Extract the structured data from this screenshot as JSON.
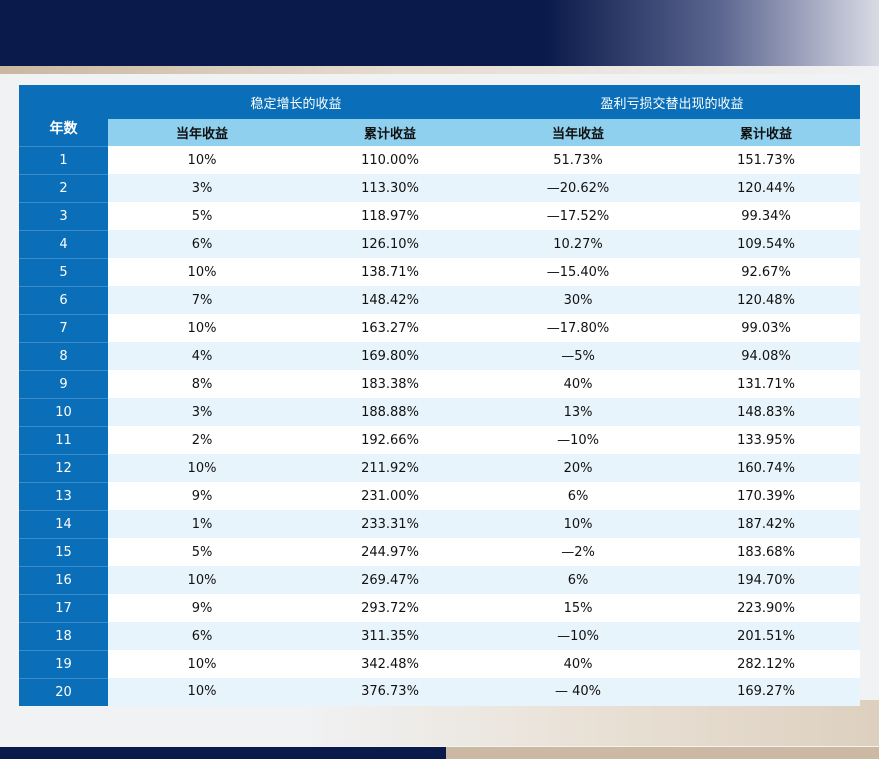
{
  "table": {
    "year_header": "年数",
    "group_headers": [
      "稳定增长的收益",
      "盈利亏损交替出现的收益"
    ],
    "sub_headers": [
      "当年收益",
      "累计收益",
      "当年收益",
      "累计收益"
    ],
    "rows": [
      {
        "year": "1",
        "steady_annual": "10%",
        "steady_cumulative": "110.00%",
        "alt_annual": "51.73%",
        "alt_cumulative": "151.73%"
      },
      {
        "year": "2",
        "steady_annual": "3%",
        "steady_cumulative": "113.30%",
        "alt_annual": "—20.62%",
        "alt_cumulative": "120.44%"
      },
      {
        "year": "3",
        "steady_annual": "5%",
        "steady_cumulative": "118.97%",
        "alt_annual": "—17.52%",
        "alt_cumulative": "99.34%"
      },
      {
        "year": "4",
        "steady_annual": "6%",
        "steady_cumulative": "126.10%",
        "alt_annual": "10.27%",
        "alt_cumulative": "109.54%"
      },
      {
        "year": "5",
        "steady_annual": "10%",
        "steady_cumulative": "138.71%",
        "alt_annual": "—15.40%",
        "alt_cumulative": "92.67%"
      },
      {
        "year": "6",
        "steady_annual": "7%",
        "steady_cumulative": "148.42%",
        "alt_annual": "30%",
        "alt_cumulative": "120.48%"
      },
      {
        "year": "7",
        "steady_annual": "10%",
        "steady_cumulative": "163.27%",
        "alt_annual": "—17.80%",
        "alt_cumulative": "99.03%"
      },
      {
        "year": "8",
        "steady_annual": "4%",
        "steady_cumulative": "169.80%",
        "alt_annual": "—5%",
        "alt_cumulative": "94.08%"
      },
      {
        "year": "9",
        "steady_annual": "8%",
        "steady_cumulative": "183.38%",
        "alt_annual": "40%",
        "alt_cumulative": "131.71%"
      },
      {
        "year": "10",
        "steady_annual": "3%",
        "steady_cumulative": "188.88%",
        "alt_annual": "13%",
        "alt_cumulative": "148.83%"
      },
      {
        "year": "11",
        "steady_annual": "2%",
        "steady_cumulative": "192.66%",
        "alt_annual": "—10%",
        "alt_cumulative": "133.95%"
      },
      {
        "year": "12",
        "steady_annual": "10%",
        "steady_cumulative": "211.92%",
        "alt_annual": "20%",
        "alt_cumulative": "160.74%"
      },
      {
        "year": "13",
        "steady_annual": "9%",
        "steady_cumulative": "231.00%",
        "alt_annual": "6%",
        "alt_cumulative": "170.39%"
      },
      {
        "year": "14",
        "steady_annual": "1%",
        "steady_cumulative": "233.31%",
        "alt_annual": "10%",
        "alt_cumulative": "187.42%"
      },
      {
        "year": "15",
        "steady_annual": "5%",
        "steady_cumulative": "244.97%",
        "alt_annual": "—2%",
        "alt_cumulative": "183.68%"
      },
      {
        "year": "16",
        "steady_annual": "10%",
        "steady_cumulative": "269.47%",
        "alt_annual": "6%",
        "alt_cumulative": "194.70%"
      },
      {
        "year": "17",
        "steady_annual": "9%",
        "steady_cumulative": "293.72%",
        "alt_annual": "15%",
        "alt_cumulative": "223.90%"
      },
      {
        "year": "18",
        "steady_annual": "6%",
        "steady_cumulative": "311.35%",
        "alt_annual": "—10%",
        "alt_cumulative": "201.51%"
      },
      {
        "year": "19",
        "steady_annual": "10%",
        "steady_cumulative": "342.48%",
        "alt_annual": "40%",
        "alt_cumulative": "282.12%"
      },
      {
        "year": "20",
        "steady_annual": "10%",
        "steady_cumulative": "376.73%",
        "alt_annual": "— 40%",
        "alt_cumulative": "169.27%"
      }
    ]
  },
  "colors": {
    "header_blue": "#0a6fb8",
    "subheader_light_blue": "#8fd0ee",
    "row_stripe": "#e8f4fb",
    "navy": "#0a1a4a",
    "tan": "#cbb9a4"
  }
}
